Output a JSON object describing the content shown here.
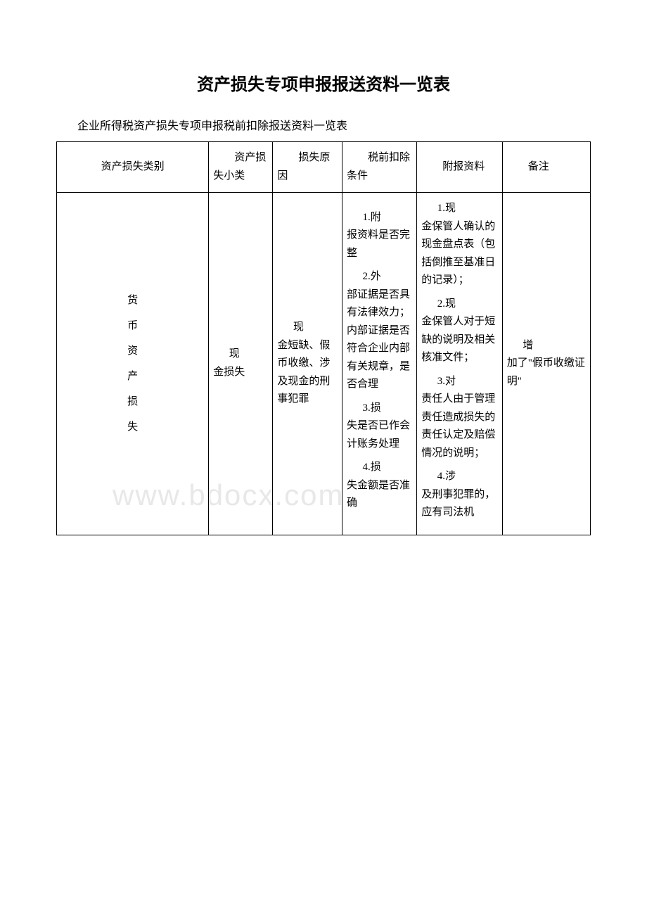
{
  "title": "资产损失专项申报报送资料一览表",
  "subtitle": "企业所得税资产损失专项申报税前扣除报送资料一览表",
  "watermark": "www.bdocx.com",
  "headers": {
    "col1_2": "资产损失类别",
    "col3_line1": "资",
    "col3_line2": "产损失小类",
    "col4_line1": "损",
    "col4_line2": "失原因",
    "col5_line1": "税",
    "col5_line2": "前扣除条件",
    "col6_line1": "附",
    "col6_line2": "报资料",
    "col7_line1": "备",
    "col7_line2": "注"
  },
  "row1": {
    "category_vertical": "货\n币\n资\n产\n损\n失",
    "subcat_lead": "现",
    "subcat_rest": "金损失",
    "reason_lead": "现",
    "reason_rest": "金短缺、假币收缴、涉及现金的刑事犯罪",
    "condition_1_lead": "1.附",
    "condition_1_rest": "报资料是否完整",
    "condition_2_lead": "2.外",
    "condition_2_rest": "部证据是否具有法律效力；内部证据是否符合企业内部有关规章，是否合理",
    "condition_3_lead": "3.损",
    "condition_3_rest": "失是否已作会计账务处理",
    "condition_4_lead": "4.损",
    "condition_4_rest": "失金额是否准确",
    "material_1_lead": "1.现",
    "material_1_rest": "金保管人确认的现金盘点表（包括倒推至基准日的记录）；",
    "material_2_lead": "2.现",
    "material_2_rest": "金保管人对于短缺的说明及相关核准文件；",
    "material_3_lead": "3.对",
    "material_3_rest": "责任人由于管理责任造成损失的责任认定及赔偿情况的说明；",
    "material_4_lead": "4.涉",
    "material_4_rest": "及刑事犯罪的，应有司法机",
    "note_lead": "增",
    "note_rest": "加了\"假币收缴证明\""
  },
  "styling": {
    "border_color": "#000000",
    "background_color": "#ffffff",
    "watermark_color": "#e8e8e8",
    "title_fontsize": 24,
    "subtitle_fontsize": 16,
    "cell_fontsize": 15,
    "column_widths_pct": [
      6.5,
      22,
      12,
      13,
      14,
      16,
      16.5
    ]
  }
}
